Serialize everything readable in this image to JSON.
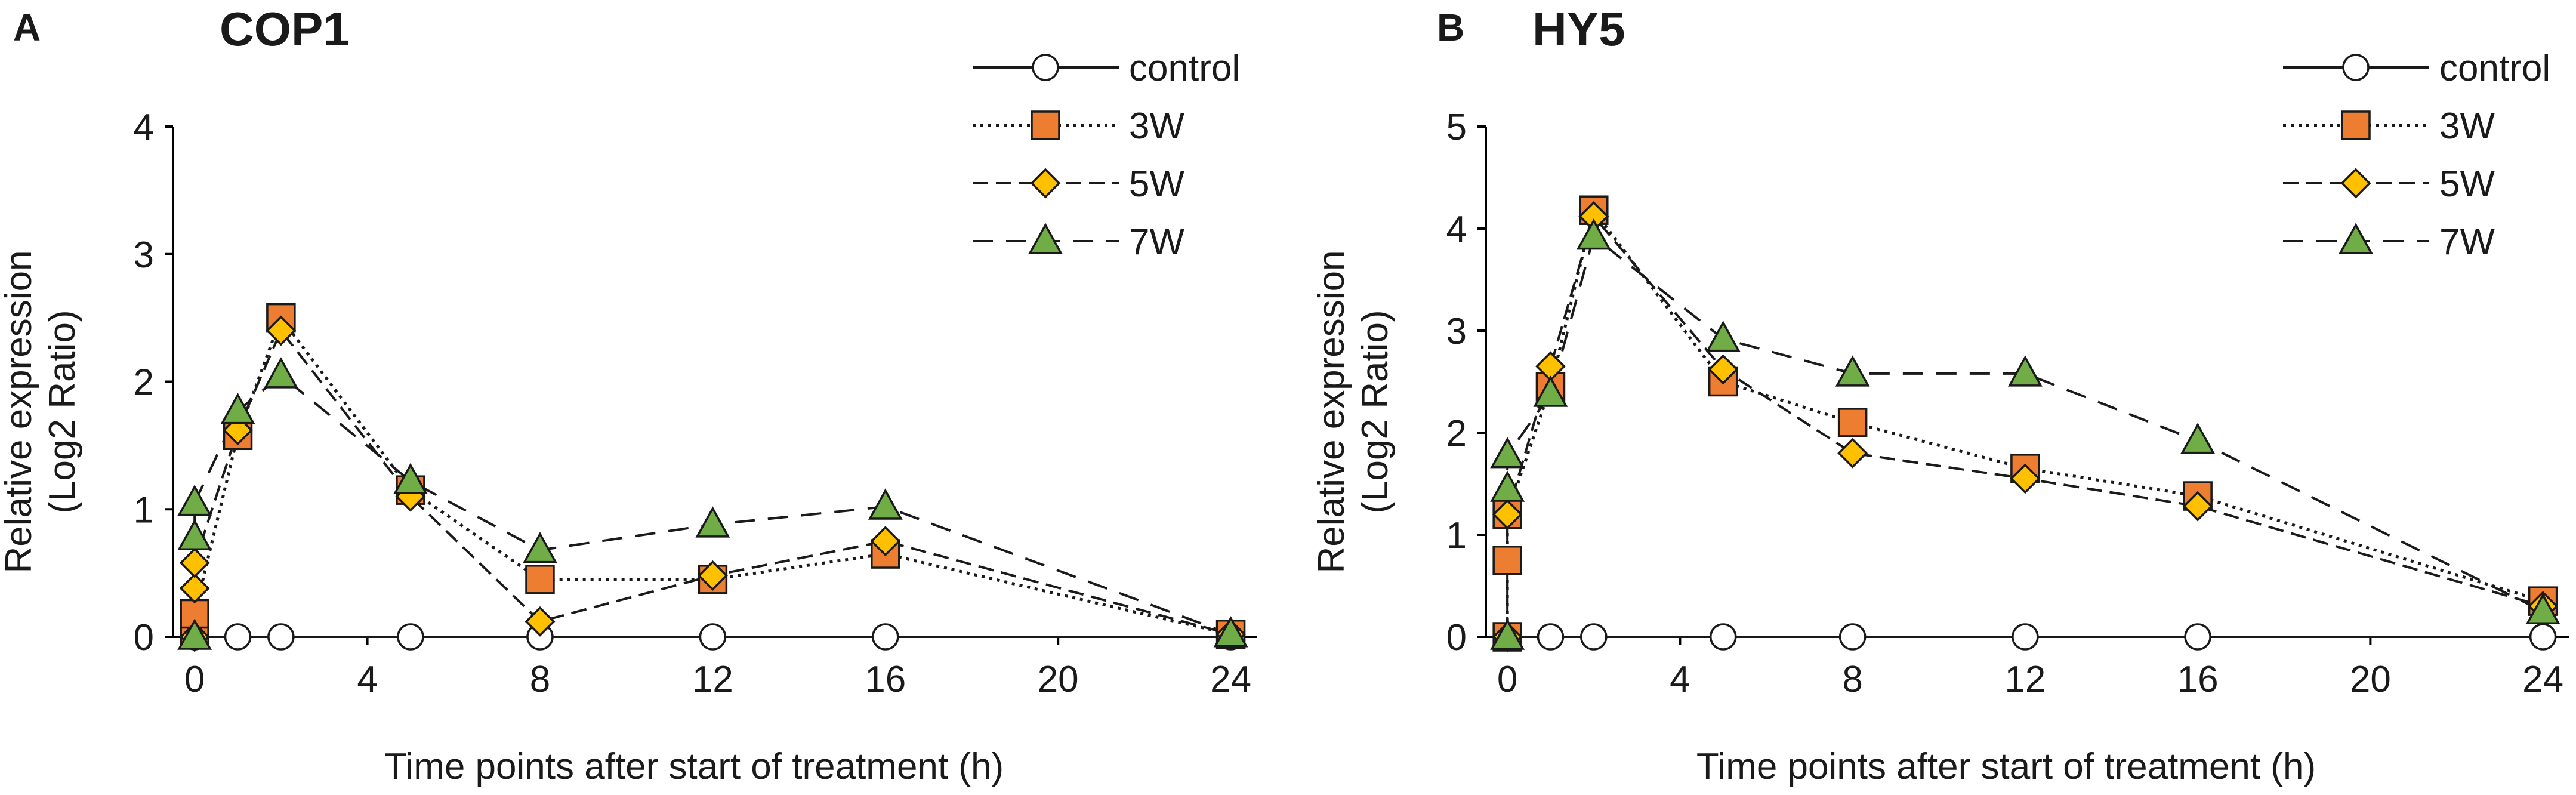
{
  "colors": {
    "square": "#ED7D31",
    "diamond": "#FFC000",
    "triangle": "#70AD47",
    "marker_stroke": "#1a1a1a",
    "circle_fill": "#ffffff"
  },
  "chart_data": [
    {
      "type": "line",
      "panel_label": "A",
      "title": "COP1",
      "xlabel": "Time points after start of treatment (h)",
      "ylabel": [
        "Relative expression",
        "(Log2 Ratio)"
      ],
      "xlim": [
        -0.5,
        24.6
      ],
      "ylim": [
        0,
        4
      ],
      "xticks": [
        0,
        4,
        8,
        12,
        16,
        20,
        24
      ],
      "yticks": [
        0,
        1,
        2,
        3,
        4
      ],
      "grid": false,
      "legend_position": "top-right",
      "series": [
        {
          "name": "control",
          "dash": "solid",
          "marker": "circle",
          "x": [
            0,
            1,
            2,
            5,
            8,
            12,
            16,
            24
          ],
          "y": [
            0,
            0,
            0,
            0,
            0,
            0,
            0,
            0
          ]
        },
        {
          "name": "3W",
          "dash": "dotted",
          "marker": "square",
          "x": [
            0,
            0,
            1,
            2,
            5,
            8,
            12,
            16,
            24
          ],
          "y": [
            0.02,
            0.18,
            1.58,
            2.5,
            1.15,
            0.45,
            0.45,
            0.65,
            0.02
          ]
        },
        {
          "name": "5W",
          "dash": "dashed",
          "marker": "diamond",
          "x": [
            0,
            0,
            0,
            1,
            2,
            5,
            8,
            12,
            16,
            24
          ],
          "y": [
            0.0,
            0.38,
            0.58,
            1.62,
            2.4,
            1.1,
            0.12,
            0.48,
            0.75,
            0.02
          ]
        },
        {
          "name": "7W",
          "dash": "longdash",
          "marker": "triangle",
          "x": [
            0,
            0,
            0,
            1,
            2,
            5,
            8,
            12,
            16,
            24
          ],
          "y": [
            0.0,
            0.78,
            1.05,
            1.77,
            2.05,
            1.22,
            0.68,
            0.88,
            1.02,
            0.02
          ]
        }
      ]
    },
    {
      "type": "line",
      "panel_label": "B",
      "title": "HY5",
      "xlabel": "Time points after start of treatment (h)",
      "ylabel": [
        "Relative expression",
        "(Log2 Ratio)"
      ],
      "xlim": [
        -0.5,
        24.6
      ],
      "ylim": [
        0,
        5
      ],
      "xticks": [
        0,
        4,
        8,
        12,
        16,
        20,
        24
      ],
      "yticks": [
        0,
        1,
        2,
        3,
        4,
        5
      ],
      "grid": false,
      "legend_position": "top-right",
      "series": [
        {
          "name": "control",
          "dash": "solid",
          "marker": "circle",
          "x": [
            0,
            1,
            2,
            5,
            8,
            12,
            16,
            24
          ],
          "y": [
            0,
            0,
            0,
            0,
            0,
            0,
            0,
            0
          ]
        },
        {
          "name": "3W",
          "dash": "dotted",
          "marker": "square",
          "x": [
            0,
            0,
            0,
            1,
            2,
            5,
            8,
            12,
            16,
            24
          ],
          "y": [
            0.0,
            0.75,
            1.2,
            2.45,
            4.18,
            2.5,
            2.1,
            1.65,
            1.38,
            0.35
          ]
        },
        {
          "name": "5W",
          "dash": "dashed",
          "marker": "diamond",
          "x": [
            0,
            0,
            1,
            2,
            5,
            8,
            12,
            16,
            24
          ],
          "y": [
            0.0,
            1.2,
            2.65,
            4.12,
            2.62,
            1.8,
            1.55,
            1.28,
            0.3
          ]
        },
        {
          "name": "7W",
          "dash": "longdash",
          "marker": "triangle",
          "x": [
            0,
            0,
            0,
            1,
            2,
            5,
            8,
            12,
            16,
            24
          ],
          "y": [
            0.0,
            1.45,
            1.78,
            2.38,
            3.92,
            2.92,
            2.58,
            2.58,
            1.92,
            0.25
          ]
        }
      ]
    }
  ]
}
